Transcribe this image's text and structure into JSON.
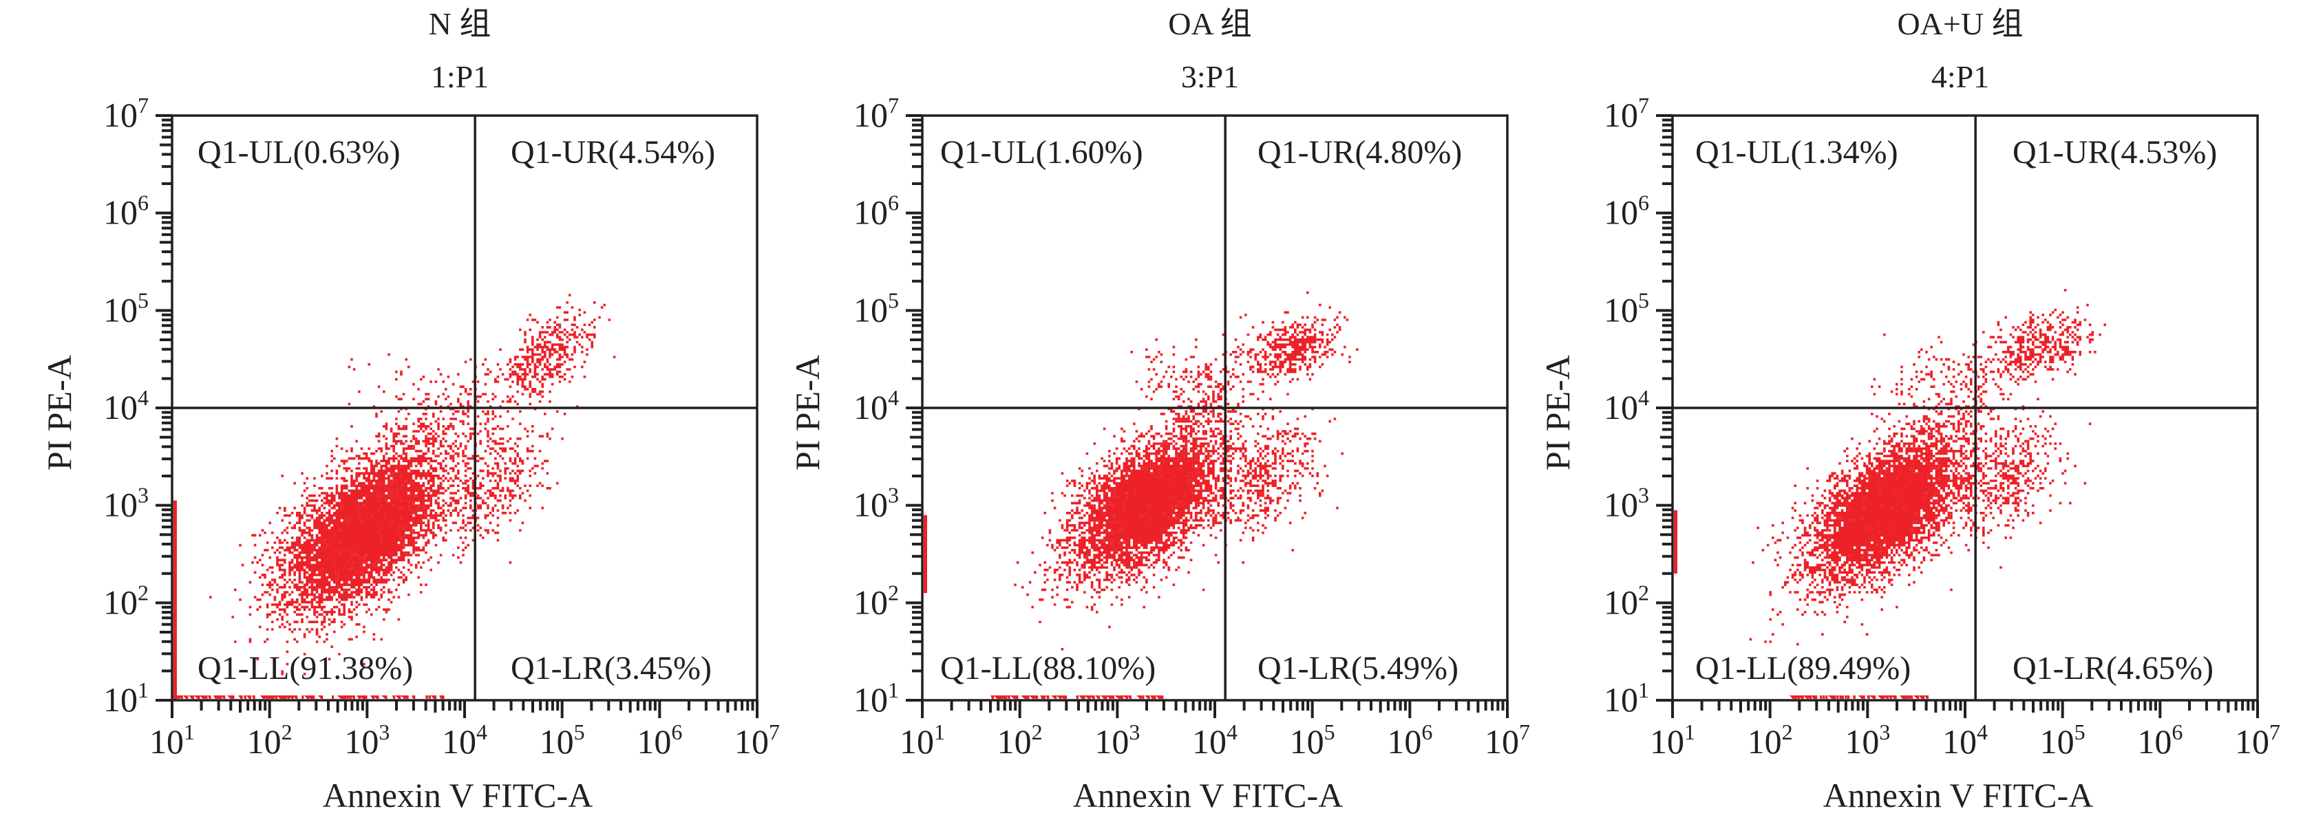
{
  "figure": {
    "point_color": "#ed2128",
    "axis_color": "#231f20",
    "group_suffix": "组"
  },
  "chart_data": [
    {
      "type": "scatter",
      "title": "N 组",
      "subtitle": "1:P1",
      "xlabel": "Annexin V FITC-A",
      "ylabel": "PI PE-A",
      "xscale": "log",
      "yscale": "log",
      "xlim": [
        10,
        10000000
      ],
      "ylim": [
        10,
        10000000
      ],
      "xticks": [
        {
          "base": "10",
          "exp": "1"
        },
        {
          "base": "10",
          "exp": "2"
        },
        {
          "base": "10",
          "exp": "3"
        },
        {
          "base": "10",
          "exp": "4"
        },
        {
          "base": "10",
          "exp": "5"
        },
        {
          "base": "10",
          "exp": "6"
        },
        {
          "base": "10",
          "exp": "7"
        }
      ],
      "yticks": [
        {
          "base": "10",
          "exp": "1"
        },
        {
          "base": "10",
          "exp": "2"
        },
        {
          "base": "10",
          "exp": "3"
        },
        {
          "base": "10",
          "exp": "4"
        },
        {
          "base": "10",
          "exp": "5"
        },
        {
          "base": "10",
          "exp": "6"
        },
        {
          "base": "10",
          "exp": "7"
        }
      ],
      "grid": false,
      "gate": {
        "x_threshold": 12800,
        "y_threshold": 10000
      },
      "quadrants": [
        {
          "id": "UL",
          "label": "Q1-UL(0.63%)",
          "percent": 0.63
        },
        {
          "id": "UR",
          "label": "Q1-UR(4.54%)",
          "percent": 4.54
        },
        {
          "id": "LL",
          "label": "Q1-LL(91.38%)",
          "percent": 91.38
        },
        {
          "id": "LR",
          "label": "Q1-LR(3.45%)",
          "percent": 3.45
        }
      ],
      "populations_log10": [
        {
          "name": "live",
          "cx": 2.95,
          "cy": 2.75,
          "sx": 0.42,
          "sy": 0.42,
          "rho": 0.55,
          "n": 5200
        },
        {
          "name": "live-core",
          "cx": 3.0,
          "cy": 2.75,
          "sx": 0.25,
          "sy": 0.24,
          "rho": 0.6,
          "n": 3200
        },
        {
          "name": "early-apoptotic",
          "cx": 4.3,
          "cy": 3.25,
          "sx": 0.28,
          "sy": 0.32,
          "rho": 0.4,
          "n": 380
        },
        {
          "name": "late-apoptotic",
          "cx": 4.85,
          "cy": 4.55,
          "sx": 0.25,
          "sy": 0.22,
          "rho": 0.5,
          "n": 420
        },
        {
          "name": "bridge",
          "cx": 3.9,
          "cy": 3.9,
          "sx": 0.3,
          "sy": 0.3,
          "rho": 0.5,
          "n": 220
        },
        {
          "name": "necrotic",
          "cx": 3.2,
          "cy": 4.2,
          "sx": 0.25,
          "sy": 0.2,
          "rho": 0.3,
          "n": 30
        }
      ],
      "axis_pileups_log10": {
        "left_edge_y_range": [
          1.0,
          3.05
        ],
        "bottom_edge_x_range": [
          1.0,
          3.8
        ]
      }
    },
    {
      "type": "scatter",
      "title": "OA 组",
      "subtitle": "3:P1",
      "xlabel": "Annexin V FITC-A",
      "ylabel": "PI PE-A",
      "xscale": "log",
      "yscale": "log",
      "xlim": [
        10,
        10000000
      ],
      "ylim": [
        10,
        10000000
      ],
      "xticks": [
        {
          "base": "10",
          "exp": "1"
        },
        {
          "base": "10",
          "exp": "2"
        },
        {
          "base": "10",
          "exp": "3"
        },
        {
          "base": "10",
          "exp": "4"
        },
        {
          "base": "10",
          "exp": "5"
        },
        {
          "base": "10",
          "exp": "6"
        },
        {
          "base": "10",
          "exp": "7"
        }
      ],
      "yticks": [
        {
          "base": "10",
          "exp": "1"
        },
        {
          "base": "10",
          "exp": "2"
        },
        {
          "base": "10",
          "exp": "3"
        },
        {
          "base": "10",
          "exp": "4"
        },
        {
          "base": "10",
          "exp": "5"
        },
        {
          "base": "10",
          "exp": "6"
        },
        {
          "base": "10",
          "exp": "7"
        }
      ],
      "grid": false,
      "gate": {
        "x_threshold": 12800,
        "y_threshold": 10000
      },
      "quadrants": [
        {
          "id": "UL",
          "label": "Q1-UL(1.60%)",
          "percent": 1.6
        },
        {
          "id": "UR",
          "label": "Q1-UR(4.80%)",
          "percent": 4.8
        },
        {
          "id": "LL",
          "label": "Q1-LL(88.10%)",
          "percent": 88.1
        },
        {
          "id": "LR",
          "label": "Q1-LR(5.49%)",
          "percent": 5.49
        }
      ],
      "populations_log10": [
        {
          "name": "live",
          "cx": 3.25,
          "cy": 3.0,
          "sx": 0.38,
          "sy": 0.36,
          "rho": 0.5,
          "n": 4200
        },
        {
          "name": "live-core",
          "cx": 3.3,
          "cy": 3.05,
          "sx": 0.22,
          "sy": 0.2,
          "rho": 0.55,
          "n": 3000
        },
        {
          "name": "early-apoptotic",
          "cx": 4.45,
          "cy": 3.3,
          "sx": 0.3,
          "sy": 0.3,
          "rho": 0.4,
          "n": 520
        },
        {
          "name": "late-apoptotic",
          "cx": 4.75,
          "cy": 4.62,
          "sx": 0.25,
          "sy": 0.16,
          "rho": 0.35,
          "n": 460
        },
        {
          "name": "bridge",
          "cx": 3.9,
          "cy": 4.0,
          "sx": 0.22,
          "sy": 0.3,
          "rho": 0.5,
          "n": 260
        },
        {
          "name": "necrotic",
          "cx": 3.5,
          "cy": 4.3,
          "sx": 0.2,
          "sy": 0.2,
          "rho": 0.3,
          "n": 60
        }
      ],
      "axis_pileups_log10": {
        "left_edge_y_range": [
          2.1,
          2.9
        ],
        "bottom_edge_x_range": [
          1.7,
          3.5
        ]
      }
    },
    {
      "type": "scatter",
      "title": "OA+U 组",
      "subtitle": "4:P1",
      "xlabel": "Annexin V FITC-A",
      "ylabel": "PI PE-A",
      "xscale": "log",
      "yscale": "log",
      "xlim": [
        10,
        10000000
      ],
      "ylim": [
        10,
        10000000
      ],
      "xticks": [
        {
          "base": "10",
          "exp": "1"
        },
        {
          "base": "10",
          "exp": "2"
        },
        {
          "base": "10",
          "exp": "3"
        },
        {
          "base": "10",
          "exp": "4"
        },
        {
          "base": "10",
          "exp": "5"
        },
        {
          "base": "10",
          "exp": "6"
        },
        {
          "base": "10",
          "exp": "7"
        }
      ],
      "yticks": [
        {
          "base": "10",
          "exp": "1"
        },
        {
          "base": "10",
          "exp": "2"
        },
        {
          "base": "10",
          "exp": "3"
        },
        {
          "base": "10",
          "exp": "4"
        },
        {
          "base": "10",
          "exp": "5"
        },
        {
          "base": "10",
          "exp": "6"
        },
        {
          "base": "10",
          "exp": "7"
        }
      ],
      "grid": false,
      "gate": {
        "x_threshold": 12800,
        "y_threshold": 10000
      },
      "quadrants": [
        {
          "id": "UL",
          "label": "Q1-UL(1.34%)",
          "percent": 1.34
        },
        {
          "id": "UR",
          "label": "Q1-UR(4.53%)",
          "percent": 4.53
        },
        {
          "id": "LL",
          "label": "Q1-LL(89.49%)",
          "percent": 89.49
        },
        {
          "id": "LR",
          "label": "Q1-LR(4.65%)",
          "percent": 4.65
        }
      ],
      "populations_log10": [
        {
          "name": "live",
          "cx": 3.15,
          "cy": 2.95,
          "sx": 0.4,
          "sy": 0.38,
          "rho": 0.55,
          "n": 4400
        },
        {
          "name": "live-core",
          "cx": 3.2,
          "cy": 3.0,
          "sx": 0.22,
          "sy": 0.2,
          "rho": 0.6,
          "n": 3100
        },
        {
          "name": "early-apoptotic",
          "cx": 4.4,
          "cy": 3.3,
          "sx": 0.3,
          "sy": 0.3,
          "rho": 0.4,
          "n": 460
        },
        {
          "name": "late-apoptotic",
          "cx": 4.75,
          "cy": 4.65,
          "sx": 0.27,
          "sy": 0.17,
          "rho": 0.35,
          "n": 420
        },
        {
          "name": "bridge",
          "cx": 3.85,
          "cy": 3.95,
          "sx": 0.25,
          "sy": 0.3,
          "rho": 0.5,
          "n": 250
        },
        {
          "name": "necrotic",
          "cx": 3.5,
          "cy": 4.3,
          "sx": 0.2,
          "sy": 0.2,
          "rho": 0.3,
          "n": 50
        }
      ],
      "axis_pileups_log10": {
        "left_edge_y_range": [
          2.3,
          2.95
        ],
        "bottom_edge_x_range": [
          2.2,
          3.6
        ]
      }
    }
  ]
}
